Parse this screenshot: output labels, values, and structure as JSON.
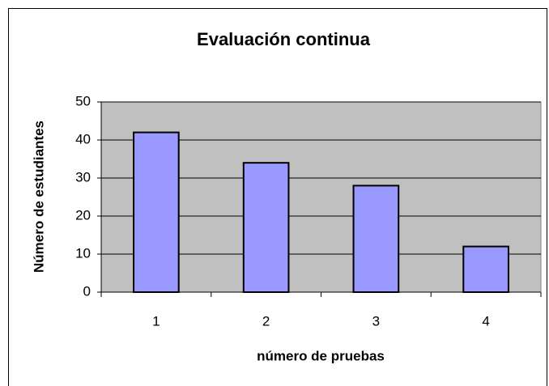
{
  "chart_data": {
    "type": "bar",
    "title": "Evaluación continua",
    "x_label": "número de pruebas",
    "y_label": "Número de estudiantes",
    "categories": [
      "1",
      "2",
      "3",
      "4"
    ],
    "values": [
      42,
      34,
      28,
      12
    ],
    "color": "#9999ff",
    "ylim": [
      0,
      50
    ],
    "yticks": [
      0,
      10,
      20,
      30,
      40,
      50
    ],
    "grid": true
  }
}
